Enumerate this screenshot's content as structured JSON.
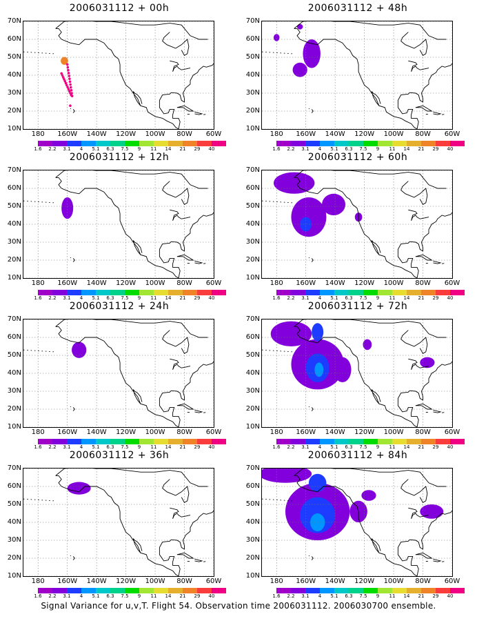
{
  "panels": [
    {
      "title": "2006031112 + 00h",
      "col": 0,
      "row": 0,
      "blobs": [
        {
          "lon": -162,
          "lat": 48,
          "rx": 2.5,
          "ry": 2.2,
          "level": 10
        }
      ],
      "dots": true
    },
    {
      "title": "2006031112 + 12h",
      "col": 0,
      "row": 1,
      "blobs": [
        {
          "lon": -160,
          "lat": 49,
          "rx": 4,
          "ry": 6,
          "level": 1
        }
      ]
    },
    {
      "title": "2006031112 + 24h",
      "col": 0,
      "row": 2,
      "blobs": [
        {
          "lon": -152,
          "lat": 53,
          "rx": 5,
          "ry": 4.5,
          "level": 1
        }
      ]
    },
    {
      "title": "2006031112 + 36h",
      "col": 0,
      "row": 3,
      "blobs": [
        {
          "lon": -152,
          "lat": 59,
          "rx": 8,
          "ry": 3.5,
          "level": 1
        }
      ]
    },
    {
      "title": "2006031112 + 48h",
      "col": 1,
      "row": 0,
      "blobs": [
        {
          "lon": -180,
          "lat": 61,
          "rx": 2,
          "ry": 2,
          "level": 1
        },
        {
          "lon": -164,
          "lat": 67,
          "rx": 2,
          "ry": 1.5,
          "level": 1
        },
        {
          "lon": -156,
          "lat": 52,
          "rx": 6,
          "ry": 8,
          "level": 1
        },
        {
          "lon": -164,
          "lat": 43,
          "rx": 5,
          "ry": 4,
          "level": 1
        }
      ]
    },
    {
      "title": "2006031112 + 60h",
      "col": 1,
      "row": 1,
      "blobs": [
        {
          "lon": -168,
          "lat": 63,
          "rx": 14,
          "ry": 6,
          "level": 1
        },
        {
          "lon": -158,
          "lat": 44,
          "rx": 12,
          "ry": 11,
          "level": 1
        },
        {
          "lon": -160,
          "lat": 40,
          "rx": 4,
          "ry": 4,
          "level": 2
        },
        {
          "lon": -141,
          "lat": 51,
          "rx": 8,
          "ry": 6,
          "level": 1
        },
        {
          "lon": -124,
          "lat": 44,
          "rx": 2.5,
          "ry": 2.5,
          "level": 1
        }
      ]
    },
    {
      "title": "2006031112 + 72h",
      "col": 1,
      "row": 2,
      "blobs": [
        {
          "lon": -170,
          "lat": 62,
          "rx": 14,
          "ry": 7,
          "level": 1
        },
        {
          "lon": -152,
          "lat": 45,
          "rx": 18,
          "ry": 14,
          "level": 1
        },
        {
          "lon": -152,
          "lat": 43,
          "rx": 8,
          "ry": 8,
          "level": 2
        },
        {
          "lon": -151,
          "lat": 42,
          "rx": 3,
          "ry": 4,
          "level": 3
        },
        {
          "lon": -152,
          "lat": 63,
          "rx": 4,
          "ry": 5,
          "level": 2
        },
        {
          "lon": -135,
          "lat": 42,
          "rx": 6,
          "ry": 7,
          "level": 1
        },
        {
          "lon": -118,
          "lat": 56,
          "rx": 3,
          "ry": 3,
          "level": 1
        },
        {
          "lon": -77,
          "lat": 46,
          "rx": 5,
          "ry": 3,
          "level": 1
        }
      ]
    },
    {
      "title": "2006031112 + 84h",
      "col": 1,
      "row": 3,
      "blobs": [
        {
          "lon": -174,
          "lat": 67,
          "rx": 18,
          "ry": 5,
          "level": 1
        },
        {
          "lon": -152,
          "lat": 46,
          "rx": 22,
          "ry": 16,
          "level": 1
        },
        {
          "lon": -152,
          "lat": 44,
          "rx": 12,
          "ry": 10,
          "level": 2
        },
        {
          "lon": -152,
          "lat": 40,
          "rx": 5,
          "ry": 5,
          "level": 3
        },
        {
          "lon": -152,
          "lat": 62,
          "rx": 6,
          "ry": 5,
          "level": 2
        },
        {
          "lon": -124,
          "lat": 46,
          "rx": 6,
          "ry": 6,
          "level": 1
        },
        {
          "lon": -117,
          "lat": 55,
          "rx": 5,
          "ry": 3,
          "level": 1
        },
        {
          "lon": -74,
          "lat": 46,
          "rx": 8,
          "ry": 4,
          "level": 1
        }
      ]
    }
  ],
  "axes": {
    "lon_min": -190,
    "lon_max": -60,
    "lat_min": 10,
    "lat_max": 70,
    "x_ticks": [
      {
        "lon": -180,
        "label": "180"
      },
      {
        "lon": -160,
        "label": "160W"
      },
      {
        "lon": -140,
        "label": "140W"
      },
      {
        "lon": -120,
        "label": "120W"
      },
      {
        "lon": -100,
        "label": "100W"
      },
      {
        "lon": -80,
        "label": "80W"
      },
      {
        "lon": -60,
        "label": "60W"
      }
    ],
    "y_ticks": [
      {
        "lat": 70,
        "label": "70N"
      },
      {
        "lat": 60,
        "label": "60N"
      },
      {
        "lat": 50,
        "label": "50N"
      },
      {
        "lat": 40,
        "label": "40N"
      },
      {
        "lat": 30,
        "label": "30N"
      },
      {
        "lat": 20,
        "label": "20N"
      },
      {
        "lat": 10,
        "label": "10N"
      }
    ]
  },
  "colorbar": {
    "colors": [
      "#a000c8",
      "#8200dc",
      "#1e3cff",
      "#0096ff",
      "#00c8c8",
      "#00d28c",
      "#00dc00",
      "#a0e632",
      "#e6dc32",
      "#e6af2d",
      "#f08228",
      "#fa3c3c",
      "#f00082"
    ],
    "labels": [
      "1.6",
      "2.2",
      "3.1",
      "4",
      "5.1",
      "6.3",
      "7.5",
      "9",
      "11",
      "14",
      "21",
      "29",
      "40"
    ]
  },
  "footer": "Signal Variance for u,v,T. Flight 54. Observation time 2006031112. 2006030700 ensemble."
}
